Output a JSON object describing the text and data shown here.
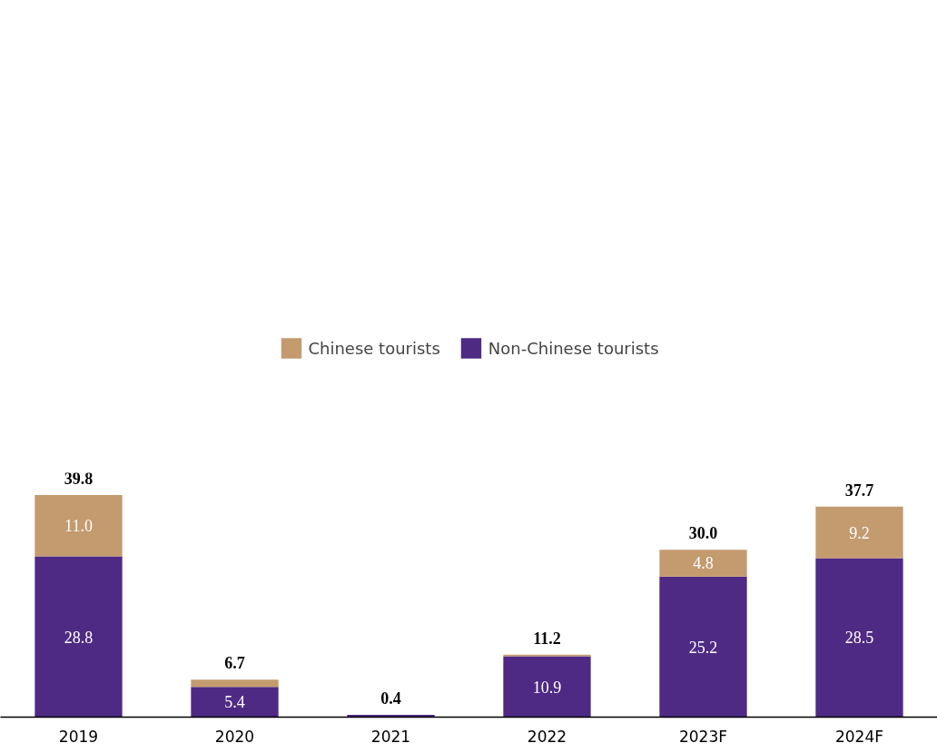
{
  "chart_data": {
    "type": "bar",
    "stacked": true,
    "categories": [
      "2019",
      "2020",
      "2021",
      "2022",
      "2023F",
      "2024F"
    ],
    "series": [
      {
        "name": "Non-Chinese tourists",
        "color": "#4e2a84",
        "values": [
          28.8,
          5.4,
          0.4,
          10.9,
          25.2,
          28.5
        ],
        "value_labels": [
          "28.8",
          "5.4",
          null,
          "10.9",
          "25.2",
          "28.5"
        ]
      },
      {
        "name": "Chinese tourists",
        "color": "#c49a6f",
        "values": [
          11.0,
          1.3,
          0.0,
          0.3,
          4.8,
          9.2
        ],
        "value_labels": [
          "11.0",
          null,
          null,
          null,
          "4.8",
          "9.2"
        ]
      }
    ],
    "totals": [
      "39.8",
      "6.7",
      "0.4",
      "11.2",
      "30.0",
      "37.7"
    ],
    "legend": "top",
    "grid": false
  }
}
